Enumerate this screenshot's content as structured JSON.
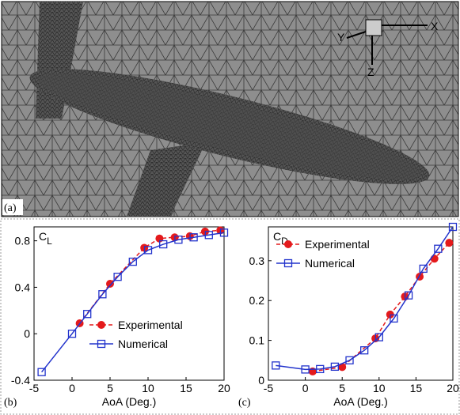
{
  "panel_a": {
    "label": "(a)",
    "axes": [
      "X",
      "Y",
      "Z"
    ]
  },
  "chart_data": [
    {
      "type": "line",
      "panel_label": "(b)",
      "ylabel": "C",
      "ylabel_sub": "L",
      "xlabel": "AoA (Deg.)",
      "xlim": [
        -5,
        20
      ],
      "xticks": [
        -5,
        0,
        5,
        10,
        15,
        20
      ],
      "ylim": [
        -0.4,
        0.92
      ],
      "yticks": [
        -0.4,
        0,
        0.4,
        0.8
      ],
      "legend": "lower right",
      "series": [
        {
          "name": "Experimental",
          "color": "#e41a1c",
          "dashed": true,
          "marker": "circle",
          "x": [
            1,
            5,
            9.5,
            11.5,
            13.5,
            15.5,
            17.5,
            19.5
          ],
          "values": [
            0.09,
            0.43,
            0.74,
            0.82,
            0.83,
            0.84,
            0.88,
            0.89
          ]
        },
        {
          "name": "Numerical",
          "color": "#2233cc",
          "dashed": false,
          "marker": "square",
          "x": [
            -4,
            0,
            2,
            4,
            6,
            8,
            10,
            12,
            14,
            16,
            18,
            20
          ],
          "values": [
            -0.33,
            0,
            0.17,
            0.34,
            0.49,
            0.62,
            0.72,
            0.77,
            0.81,
            0.83,
            0.85,
            0.87
          ]
        }
      ]
    },
    {
      "type": "line",
      "panel_label": "(c)",
      "ylabel": "C",
      "ylabel_sub": "D",
      "xlabel": "AoA (Deg.)",
      "xlim": [
        -5,
        20
      ],
      "xticks": [
        -5,
        0,
        5,
        10,
        15,
        20
      ],
      "ylim": [
        0,
        0.385
      ],
      "yticks": [
        0,
        0.1,
        0.2,
        0.3
      ],
      "legend": "upper left",
      "series": [
        {
          "name": "Experimental",
          "color": "#e41a1c",
          "dashed": true,
          "marker": "circle",
          "x": [
            1,
            5,
            9.5,
            11.5,
            13.5,
            15.5,
            17.5,
            19.5
          ],
          "values": [
            0.022,
            0.033,
            0.105,
            0.165,
            0.21,
            0.26,
            0.305,
            0.345
          ]
        },
        {
          "name": "Numerical",
          "color": "#2233cc",
          "dashed": false,
          "marker": "square",
          "x": [
            -4,
            0,
            2,
            4,
            6,
            8,
            10,
            12,
            14,
            16,
            18,
            20
          ],
          "values": [
            0.037,
            0.027,
            0.028,
            0.034,
            0.05,
            0.075,
            0.108,
            0.155,
            0.213,
            0.28,
            0.33,
            0.385
          ]
        }
      ]
    }
  ]
}
